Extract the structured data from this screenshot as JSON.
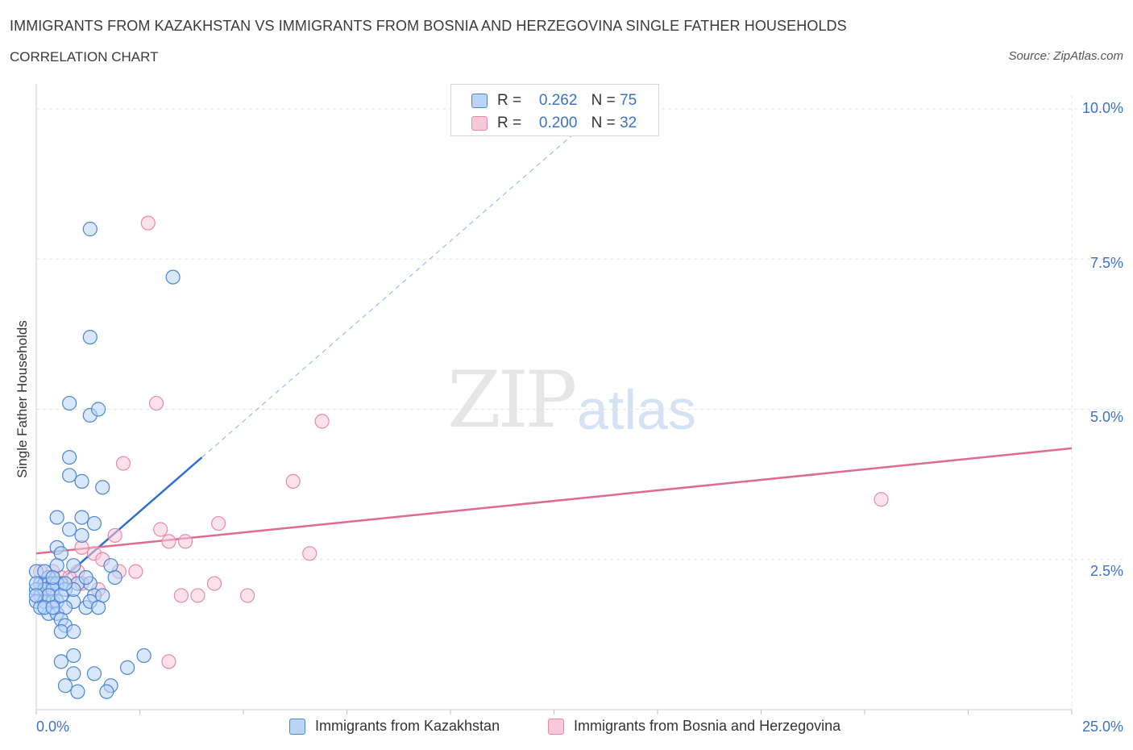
{
  "title": "IMMIGRANTS FROM KAZAKHSTAN VS IMMIGRANTS FROM BOSNIA AND HERZEGOVINA SINGLE FATHER HOUSEHOLDS",
  "subtitle": "CORRELATION CHART",
  "source": "Source: ZipAtlas.com",
  "watermark": {
    "zip": "ZIP",
    "atlas": "atlas"
  },
  "legend": {
    "rows": [
      {
        "r_label": "R =",
        "r_value": "0.262",
        "n_label": "N =",
        "n_value": "75"
      },
      {
        "r_label": "R =",
        "r_value": "0.200",
        "n_label": "N =",
        "n_value": "32"
      }
    ]
  },
  "colors": {
    "series1_fill": "#b9d4f5",
    "series1_stroke": "#4a86d4",
    "series1_line": "#2f6fcf",
    "series2_fill": "#f8c8d8",
    "series2_stroke": "#e78aa8",
    "series2_line": "#e06a93",
    "axis_label": "#3a72c8",
    "grid": "#e3e3e3"
  },
  "chart_data": {
    "type": "scatter",
    "title": "IMMIGRANTS FROM KAZAKHSTAN VS IMMIGRANTS FROM BOSNIA AND HERZEGOVINA SINGLE FATHER HOUSEHOLDS",
    "xlabel": "",
    "ylabel": "Single Father Households",
    "xlim": [
      0,
      25
    ],
    "ylim": [
      0,
      10
    ],
    "x_tick_labels": [
      "0.0%",
      "25.0%"
    ],
    "y_tick_labels": [
      {
        "value": 2.5,
        "label": "2.5%"
      },
      {
        "value": 5.0,
        "label": "5.0%"
      },
      {
        "value": 7.5,
        "label": "7.5%"
      },
      {
        "value": 10.0,
        "label": "10.0%"
      }
    ],
    "grid": true,
    "legend_position": "top-center",
    "series": [
      {
        "name": "Immigrants from Kazakhstan",
        "r": 0.262,
        "n": 75,
        "trend": {
          "x0": 0.0,
          "y0": 1.8,
          "x1": 4.0,
          "y1": 4.2,
          "dashed_to_x": 13.0,
          "dashed_to_y": 9.6
        },
        "points": [
          [
            1.3,
            8.0
          ],
          [
            3.3,
            7.2
          ],
          [
            1.3,
            6.2
          ],
          [
            0.8,
            5.1
          ],
          [
            1.3,
            4.9
          ],
          [
            1.5,
            5.0
          ],
          [
            0.8,
            4.2
          ],
          [
            0.8,
            3.9
          ],
          [
            1.1,
            3.8
          ],
          [
            1.6,
            3.7
          ],
          [
            0.5,
            3.2
          ],
          [
            1.1,
            3.2
          ],
          [
            1.4,
            3.1
          ],
          [
            0.8,
            3.0
          ],
          [
            1.1,
            2.9
          ],
          [
            0.5,
            2.7
          ],
          [
            0.6,
            2.6
          ],
          [
            0.0,
            2.3
          ],
          [
            0.5,
            2.4
          ],
          [
            0.9,
            2.4
          ],
          [
            1.8,
            2.4
          ],
          [
            0.3,
            2.2
          ],
          [
            0.6,
            2.1
          ],
          [
            1.3,
            2.1
          ],
          [
            1.9,
            2.2
          ],
          [
            0.1,
            2.1
          ],
          [
            0.2,
            2.1
          ],
          [
            0.3,
            2.1
          ],
          [
            0.4,
            2.1
          ],
          [
            0.5,
            2.1
          ],
          [
            0.0,
            2.0
          ],
          [
            0.1,
            1.9
          ],
          [
            0.2,
            2.0
          ],
          [
            0.4,
            2.0
          ],
          [
            0.7,
            2.0
          ],
          [
            1.0,
            2.1
          ],
          [
            1.4,
            1.9
          ],
          [
            0.0,
            1.8
          ],
          [
            0.2,
            1.8
          ],
          [
            0.4,
            1.8
          ],
          [
            0.5,
            1.8
          ],
          [
            0.9,
            1.8
          ],
          [
            1.2,
            1.7
          ],
          [
            1.6,
            1.9
          ],
          [
            1.3,
            1.8
          ],
          [
            0.3,
            1.6
          ],
          [
            0.5,
            1.6
          ],
          [
            0.7,
            1.7
          ],
          [
            0.6,
            1.5
          ],
          [
            1.5,
            1.7
          ],
          [
            0.7,
            1.4
          ],
          [
            0.6,
            1.3
          ],
          [
            0.9,
            1.3
          ],
          [
            0.9,
            0.9
          ],
          [
            2.6,
            0.9
          ],
          [
            0.6,
            0.8
          ],
          [
            0.9,
            0.6
          ],
          [
            1.4,
            0.6
          ],
          [
            2.2,
            0.7
          ],
          [
            0.7,
            0.4
          ],
          [
            1.0,
            0.3
          ],
          [
            1.8,
            0.4
          ],
          [
            1.7,
            0.3
          ],
          [
            0.2,
            2.3
          ],
          [
            0.4,
            2.2
          ],
          [
            0.0,
            2.1
          ],
          [
            0.3,
            1.9
          ],
          [
            0.6,
            1.9
          ],
          [
            0.1,
            1.7
          ],
          [
            0.0,
            1.9
          ],
          [
            0.2,
            1.7
          ],
          [
            0.9,
            2.0
          ],
          [
            0.4,
            1.7
          ],
          [
            1.2,
            2.2
          ],
          [
            0.7,
            2.1
          ]
        ]
      },
      {
        "name": "Immigrants from Bosnia and Herzegovina",
        "r": 0.2,
        "n": 32,
        "trend": {
          "x0": 0.0,
          "y0": 2.6,
          "x1": 25.0,
          "y1": 4.35
        },
        "points": [
          [
            2.7,
            8.1
          ],
          [
            2.9,
            5.1
          ],
          [
            6.9,
            4.8
          ],
          [
            2.1,
            4.1
          ],
          [
            6.2,
            3.8
          ],
          [
            20.4,
            3.5
          ],
          [
            3.0,
            3.0
          ],
          [
            4.4,
            3.1
          ],
          [
            1.9,
            2.9
          ],
          [
            3.2,
            2.8
          ],
          [
            3.6,
            2.8
          ],
          [
            1.1,
            2.7
          ],
          [
            1.4,
            2.6
          ],
          [
            6.6,
            2.6
          ],
          [
            1.6,
            2.5
          ],
          [
            0.4,
            2.3
          ],
          [
            1.0,
            2.3
          ],
          [
            2.0,
            2.3
          ],
          [
            2.4,
            2.3
          ],
          [
            0.6,
            2.2
          ],
          [
            0.2,
            2.1
          ],
          [
            0.5,
            2.1
          ],
          [
            1.1,
            2.1
          ],
          [
            1.5,
            2.0
          ],
          [
            4.3,
            2.1
          ],
          [
            3.5,
            1.9
          ],
          [
            3.9,
            1.9
          ],
          [
            5.1,
            1.9
          ],
          [
            3.2,
            0.8
          ],
          [
            0.1,
            2.3
          ],
          [
            0.3,
            2.0
          ],
          [
            0.8,
            2.2
          ]
        ]
      }
    ]
  }
}
